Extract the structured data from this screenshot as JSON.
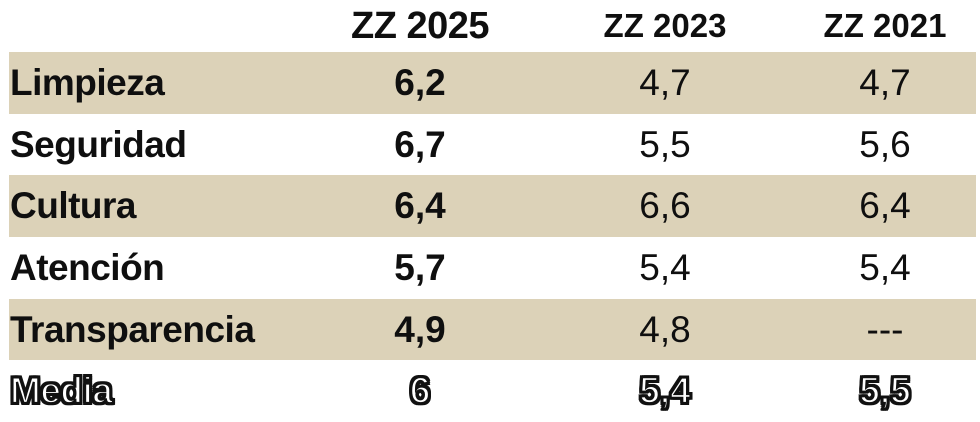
{
  "colors": {
    "row_highlight": "#dcd2b8",
    "text": "#0f0f0f",
    "background": "#ffffff"
  },
  "table": {
    "columns": {
      "label": "",
      "c2025": "ZZ 2025",
      "c2023": "ZZ 2023",
      "c2021": "ZZ 2021"
    },
    "rows": [
      {
        "label": "Limpieza",
        "zz2025": "6,2",
        "zz2023": "4,7",
        "zz2021": "4,7"
      },
      {
        "label": "Seguridad",
        "zz2025": "6,7",
        "zz2023": "5,5",
        "zz2021": "5,6"
      },
      {
        "label": "Cultura",
        "zz2025": "6,4",
        "zz2023": "6,6",
        "zz2021": "6,4"
      },
      {
        "label": "Atención",
        "zz2025": "5,7",
        "zz2023": "5,4",
        "zz2021": "5,4"
      },
      {
        "label": "Transparencia",
        "zz2025": "4,9",
        "zz2023": "4,8",
        "zz2021": "---"
      },
      {
        "label": "Media",
        "zz2025": "6",
        "zz2023": "5,4",
        "zz2021": "5,5"
      }
    ]
  },
  "chart_data": {
    "type": "table",
    "title": "",
    "categories": [
      "Limpieza",
      "Seguridad",
      "Cultura",
      "Atención",
      "Transparencia",
      "Media"
    ],
    "series": [
      {
        "name": "ZZ 2025",
        "values": [
          6.2,
          6.7,
          6.4,
          5.7,
          4.9,
          6.0
        ]
      },
      {
        "name": "ZZ 2023",
        "values": [
          4.7,
          5.5,
          6.6,
          5.4,
          4.8,
          5.4
        ]
      },
      {
        "name": "ZZ 2021",
        "values": [
          4.7,
          5.6,
          6.4,
          5.4,
          null,
          5.5
        ]
      }
    ],
    "notes": "Missing value shown as --- (Transparencia, ZZ 2021). Media row rendered in outlined text. Highlighted rows: Limpieza, Cultura, Transparencia."
  }
}
